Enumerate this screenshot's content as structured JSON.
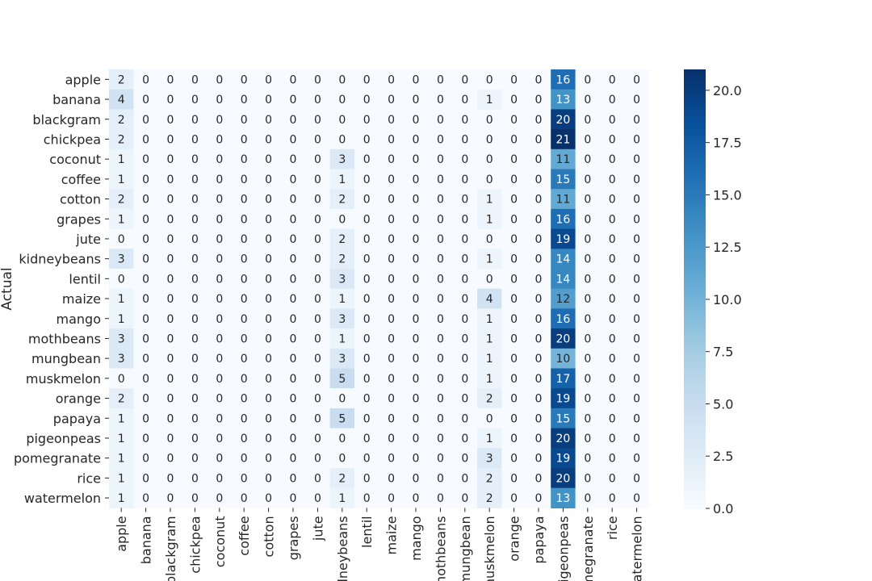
{
  "chart_data": {
    "type": "heatmap",
    "title": "",
    "xlabel": "",
    "ylabel": "Actual",
    "rows": [
      "apple",
      "banana",
      "blackgram",
      "chickpea",
      "coconut",
      "coffee",
      "cotton",
      "grapes",
      "jute",
      "kidneybeans",
      "lentil",
      "maize",
      "mango",
      "mothbeans",
      "mungbean",
      "muskmelon",
      "orange",
      "papaya",
      "pigeonpeas",
      "pomegranate",
      "rice",
      "watermelon"
    ],
    "columns": [
      "apple",
      "banana",
      "blackgram",
      "chickpea",
      "coconut",
      "coffee",
      "cotton",
      "grapes",
      "jute",
      "kidneybeans",
      "lentil",
      "maize",
      "mango",
      "mothbeans",
      "mungbean",
      "muskmelon",
      "orange",
      "papaya",
      "pigeonpeas",
      "pomegranate",
      "rice",
      "watermelon"
    ],
    "values": [
      [
        2,
        0,
        0,
        0,
        0,
        0,
        0,
        0,
        0,
        0,
        0,
        0,
        0,
        0,
        0,
        0,
        0,
        0,
        16,
        0,
        0,
        0
      ],
      [
        4,
        0,
        0,
        0,
        0,
        0,
        0,
        0,
        0,
        0,
        0,
        0,
        0,
        0,
        0,
        1,
        0,
        0,
        13,
        0,
        0,
        0
      ],
      [
        2,
        0,
        0,
        0,
        0,
        0,
        0,
        0,
        0,
        0,
        0,
        0,
        0,
        0,
        0,
        0,
        0,
        0,
        20,
        0,
        0,
        0
      ],
      [
        2,
        0,
        0,
        0,
        0,
        0,
        0,
        0,
        0,
        0,
        0,
        0,
        0,
        0,
        0,
        0,
        0,
        0,
        21,
        0,
        0,
        0
      ],
      [
        1,
        0,
        0,
        0,
        0,
        0,
        0,
        0,
        0,
        3,
        0,
        0,
        0,
        0,
        0,
        0,
        0,
        0,
        11,
        0,
        0,
        0
      ],
      [
        1,
        0,
        0,
        0,
        0,
        0,
        0,
        0,
        0,
        1,
        0,
        0,
        0,
        0,
        0,
        0,
        0,
        0,
        15,
        0,
        0,
        0
      ],
      [
        2,
        0,
        0,
        0,
        0,
        0,
        0,
        0,
        0,
        2,
        0,
        0,
        0,
        0,
        0,
        1,
        0,
        0,
        11,
        0,
        0,
        0
      ],
      [
        1,
        0,
        0,
        0,
        0,
        0,
        0,
        0,
        0,
        0,
        0,
        0,
        0,
        0,
        0,
        1,
        0,
        0,
        16,
        0,
        0,
        0
      ],
      [
        0,
        0,
        0,
        0,
        0,
        0,
        0,
        0,
        0,
        2,
        0,
        0,
        0,
        0,
        0,
        0,
        0,
        0,
        19,
        0,
        0,
        0
      ],
      [
        3,
        0,
        0,
        0,
        0,
        0,
        0,
        0,
        0,
        2,
        0,
        0,
        0,
        0,
        0,
        1,
        0,
        0,
        14,
        0,
        0,
        0
      ],
      [
        0,
        0,
        0,
        0,
        0,
        0,
        0,
        0,
        0,
        3,
        0,
        0,
        0,
        0,
        0,
        0,
        0,
        0,
        14,
        0,
        0,
        0
      ],
      [
        1,
        0,
        0,
        0,
        0,
        0,
        0,
        0,
        0,
        1,
        0,
        0,
        0,
        0,
        0,
        4,
        0,
        0,
        12,
        0,
        0,
        0
      ],
      [
        1,
        0,
        0,
        0,
        0,
        0,
        0,
        0,
        0,
        3,
        0,
        0,
        0,
        0,
        0,
        1,
        0,
        0,
        16,
        0,
        0,
        0
      ],
      [
        3,
        0,
        0,
        0,
        0,
        0,
        0,
        0,
        0,
        1,
        0,
        0,
        0,
        0,
        0,
        1,
        0,
        0,
        20,
        0,
        0,
        0
      ],
      [
        3,
        0,
        0,
        0,
        0,
        0,
        0,
        0,
        0,
        3,
        0,
        0,
        0,
        0,
        0,
        1,
        0,
        0,
        10,
        0,
        0,
        0
      ],
      [
        0,
        0,
        0,
        0,
        0,
        0,
        0,
        0,
        0,
        5,
        0,
        0,
        0,
        0,
        0,
        1,
        0,
        0,
        17,
        0,
        0,
        0
      ],
      [
        2,
        0,
        0,
        0,
        0,
        0,
        0,
        0,
        0,
        0,
        0,
        0,
        0,
        0,
        0,
        2,
        0,
        0,
        19,
        0,
        0,
        0
      ],
      [
        1,
        0,
        0,
        0,
        0,
        0,
        0,
        0,
        0,
        5,
        0,
        0,
        0,
        0,
        0,
        0,
        0,
        0,
        15,
        0,
        0,
        0
      ],
      [
        1,
        0,
        0,
        0,
        0,
        0,
        0,
        0,
        0,
        0,
        0,
        0,
        0,
        0,
        0,
        1,
        0,
        0,
        20,
        0,
        0,
        0
      ],
      [
        1,
        0,
        0,
        0,
        0,
        0,
        0,
        0,
        0,
        0,
        0,
        0,
        0,
        0,
        0,
        3,
        0,
        0,
        19,
        0,
        0,
        0
      ],
      [
        1,
        0,
        0,
        0,
        0,
        0,
        0,
        0,
        0,
        2,
        0,
        0,
        0,
        0,
        0,
        2,
        0,
        0,
        20,
        0,
        0,
        0
      ],
      [
        1,
        0,
        0,
        0,
        0,
        0,
        0,
        0,
        0,
        1,
        0,
        0,
        0,
        0,
        0,
        2,
        0,
        0,
        13,
        0,
        0,
        0
      ]
    ],
    "vmin": 0,
    "vmax": 21,
    "colormap": "Blues",
    "colorbar": {
      "ticks": [
        0.0,
        2.5,
        5.0,
        7.5,
        10.0,
        12.5,
        15.0,
        17.5,
        20.0
      ],
      "tick_labels": [
        "0.0",
        "2.5",
        "5.0",
        "7.5",
        "10.0",
        "12.5",
        "15.0",
        "17.5",
        "20.0"
      ]
    }
  },
  "colors": {
    "blues": [
      "#f7fbff",
      "#deebf7",
      "#c6dbef",
      "#9ecae1",
      "#6baed6",
      "#4292c6",
      "#2171b5",
      "#08519c",
      "#08306b"
    ],
    "text_dark": "#262626",
    "text_light": "#ffffff"
  }
}
